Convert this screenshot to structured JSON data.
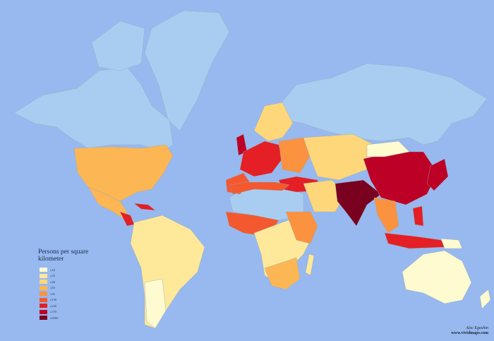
{
  "legend": {
    "title": "Persons per square kilometer",
    "items": [
      {
        "label": "≤10",
        "color": "#fffbd0"
      },
      {
        "label": "≤25",
        "color": "#fee99a"
      },
      {
        "label": "≤40",
        "color": "#fdd77a"
      },
      {
        "label": "≤65",
        "color": "#fcb654"
      },
      {
        "label": "≤95",
        "color": "#fb923f"
      },
      {
        "label": "≤130",
        "color": "#f4582e"
      },
      {
        "label": "≤230",
        "color": "#e41f25"
      },
      {
        "label": "≤370",
        "color": "#bd0026"
      },
      {
        "label": "≤8300",
        "color": "#7a0020"
      }
    ]
  },
  "colors": {
    "ocean": "#97b9ef",
    "no_data_land": "#a9cdf0"
  },
  "credit": {
    "author": "Alec Egoshin",
    "site": "www.vividmaps.com"
  }
}
